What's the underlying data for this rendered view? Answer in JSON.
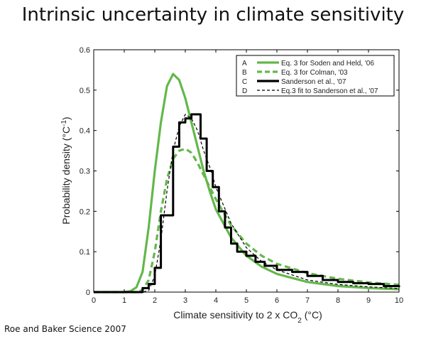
{
  "slide": {
    "title": "Intrinsic uncertainty in climate sensitivity",
    "credit": "Roe and Baker Science 2007"
  },
  "colors": {
    "green": "#63b84b",
    "black": "#000000",
    "axis": "#000000"
  },
  "chart_data": {
    "type": "line",
    "xlabel": "Climate sensitivity to 2 x CO",
    "xlabel_sub": "2",
    "xlabel_unit": " (°C)",
    "ylabel": "Probability density (°C",
    "ylabel_sup": "-1",
    "ylabel_close": ")",
    "xlim": [
      0,
      10
    ],
    "ylim": [
      0,
      0.6
    ],
    "xticks": [
      0,
      1,
      2,
      3,
      4,
      5,
      6,
      7,
      8,
      9,
      10
    ],
    "yticks": [
      0,
      0.1,
      0.2,
      0.3,
      0.4,
      0.5,
      0.6
    ],
    "xtick_labels": [
      "0",
      "1",
      "2",
      "3",
      "4",
      "5",
      "6",
      "7",
      "8",
      "9",
      "10"
    ],
    "ytick_labels": [
      "0",
      "0.1",
      "0.2",
      "0.3",
      "0.4",
      "0.5",
      "0.6"
    ],
    "grid": false,
    "legend_position": "top-right",
    "series": [
      {
        "key": "A",
        "name": "Eq. 3 for Soden and Held, '06",
        "style": "solid-thick",
        "color": "#63b84b",
        "x": [
          0,
          1.0,
          1.2,
          1.4,
          1.6,
          1.8,
          2.0,
          2.2,
          2.4,
          2.6,
          2.8,
          3.0,
          3.2,
          3.4,
          3.6,
          3.8,
          4.0,
          4.5,
          5.0,
          5.5,
          6.0,
          7.0,
          8.0,
          9.0,
          10.0
        ],
        "y": [
          0,
          0.0,
          0.002,
          0.012,
          0.05,
          0.16,
          0.3,
          0.42,
          0.51,
          0.54,
          0.525,
          0.48,
          0.42,
          0.36,
          0.3,
          0.25,
          0.205,
          0.135,
          0.09,
          0.063,
          0.045,
          0.025,
          0.015,
          0.01,
          0.007
        ]
      },
      {
        "key": "B",
        "name": "Eq. 3 for Colman, '03",
        "style": "dashed-thick",
        "color": "#63b84b",
        "x": [
          0,
          1.4,
          1.6,
          1.8,
          2.0,
          2.2,
          2.4,
          2.6,
          2.8,
          3.0,
          3.2,
          3.4,
          3.6,
          3.8,
          4.0,
          4.5,
          5.0,
          5.5,
          6.0,
          7.0,
          8.0,
          9.0,
          10.0
        ],
        "y": [
          0,
          0.0,
          0.005,
          0.03,
          0.1,
          0.2,
          0.28,
          0.33,
          0.35,
          0.355,
          0.345,
          0.32,
          0.29,
          0.26,
          0.23,
          0.165,
          0.12,
          0.09,
          0.07,
          0.047,
          0.033,
          0.024,
          0.018
        ]
      },
      {
        "key": "C",
        "name": "Sanderson et al., '07",
        "style": "step-thick",
        "color": "#000000",
        "x": [
          0,
          1.6,
          1.8,
          2.0,
          2.2,
          2.6,
          2.8,
          3.0,
          3.2,
          3.5,
          3.7,
          3.9,
          4.1,
          4.3,
          4.5,
          4.7,
          5.0,
          5.3,
          5.6,
          6.0,
          6.5,
          7.0,
          7.5,
          8.0,
          8.5,
          9.0,
          9.5,
          10.0
        ],
        "y": [
          0,
          0.01,
          0.02,
          0.06,
          0.19,
          0.36,
          0.42,
          0.43,
          0.44,
          0.38,
          0.3,
          0.26,
          0.2,
          0.16,
          0.12,
          0.1,
          0.09,
          0.075,
          0.065,
          0.055,
          0.05,
          0.04,
          0.03,
          0.025,
          0.022,
          0.02,
          0.015,
          0.012
        ]
      },
      {
        "key": "D",
        "name": "Eq.3 fit to Sanderson et al., '07",
        "style": "dashed-thin",
        "color": "#000000",
        "x": [
          0,
          1.6,
          1.8,
          2.0,
          2.2,
          2.4,
          2.6,
          2.8,
          3.0,
          3.2,
          3.4,
          3.6,
          3.8,
          4.0,
          4.5,
          5.0,
          5.5,
          6.0,
          7.0,
          8.0,
          9.0,
          10.0
        ],
        "y": [
          0,
          0.0,
          0.004,
          0.04,
          0.13,
          0.25,
          0.35,
          0.41,
          0.44,
          0.43,
          0.4,
          0.35,
          0.31,
          0.26,
          0.17,
          0.11,
          0.076,
          0.055,
          0.03,
          0.019,
          0.013,
          0.009
        ]
      }
    ]
  }
}
